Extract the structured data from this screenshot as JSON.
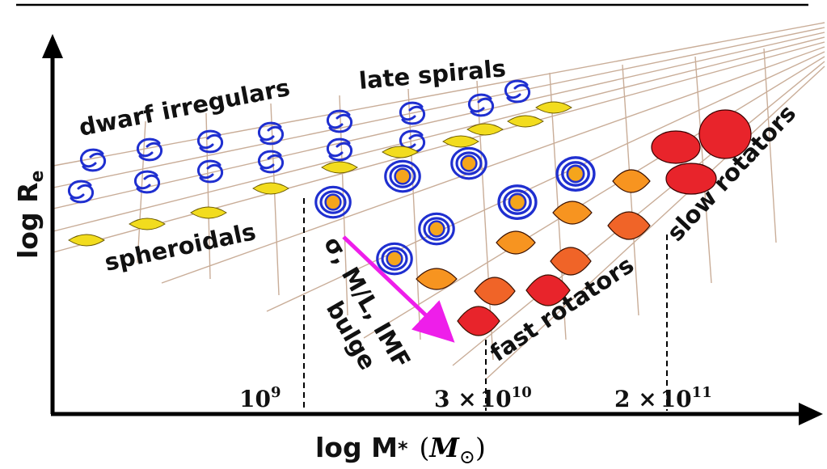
{
  "axes": {
    "y_label_main": "log R",
    "y_label_sub": "e",
    "x_label_main": "log M",
    "x_label_sub": "*",
    "x_unit_open": "(",
    "x_unit_symbol": "M",
    "x_unit_sub": "⊙",
    "x_unit_close": ")"
  },
  "ticks": {
    "t1_base": "10",
    "t1_exp": "9",
    "t2_pre": "3 ×",
    "t2_base": "10",
    "t2_exp": "10",
    "t3_pre": "2 ×",
    "t3_base": "10",
    "t3_exp": "11"
  },
  "labels": {
    "dwarf_irregulars": "dwarf irregulars",
    "late_spirals": "late spirals",
    "spheroidals": "spheroidals",
    "slow_rotators": "slow rotators",
    "fast_rotators": "fast rotators",
    "trend": "σ, M/L, IMF",
    "bulge": "bulge"
  },
  "colors": {
    "axis": "#000000",
    "grid": "#c9ad98",
    "spiral_arm": "#1f2fd0",
    "bulge_fill": "#f5a51c",
    "spheroidal_fill": "#f2dc1e",
    "slow_fill": "#e8242b",
    "mid_fill": "#f06428",
    "orange_fill": "#f79420",
    "arrow": "#ee1eea"
  }
}
